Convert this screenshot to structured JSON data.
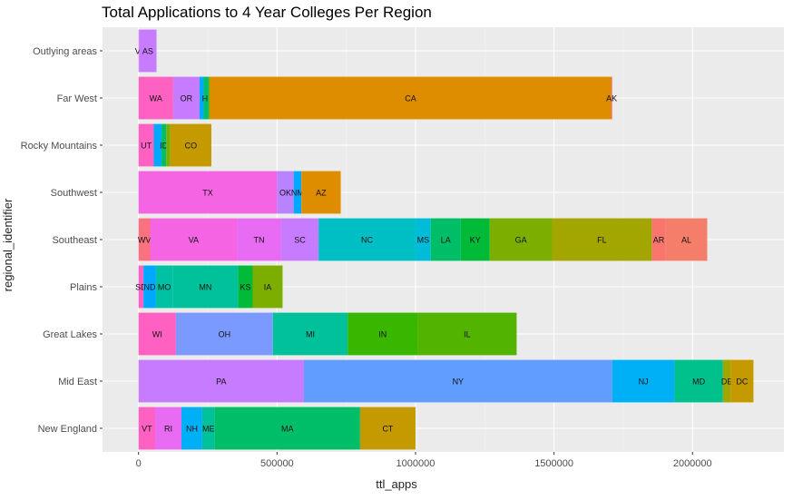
{
  "chart_data": {
    "type": "bar",
    "orientation": "horizontal",
    "stacked": true,
    "title": "Total Applications to 4 Year Colleges Per Region",
    "xlabel": "ttl_apps",
    "ylabel": "regional_identifier",
    "xlim": [
      -130000,
      2330000
    ],
    "x_ticks": [
      0,
      500000,
      1000000,
      1500000,
      2000000
    ],
    "x_tick_labels": [
      "0",
      "500000",
      "1000000",
      "1500000",
      "2000000"
    ],
    "grid": true,
    "legend": "none",
    "categories": [
      "Outlying areas",
      "Far West",
      "Rocky Mountains",
      "Southwest",
      "Southeast",
      "Plains",
      "Great Lakes",
      "Mid East",
      "New England"
    ],
    "series": [
      {
        "category": "Outlying areas",
        "segments": [
          {
            "label": "VI",
            "value": 2000,
            "color": "#e76bf3"
          },
          {
            "label": "AS",
            "value": 63000,
            "color": "#c77cff"
          }
        ]
      },
      {
        "category": "Far West",
        "segments": [
          {
            "label": "WA",
            "value": 125000,
            "color": "#ff61c3"
          },
          {
            "label": "OR",
            "value": 95000,
            "color": "#c77cff"
          },
          {
            "label": "",
            "value": 15000,
            "color": "#00a9ff"
          },
          {
            "label": "HI",
            "value": 18000,
            "color": "#00be67"
          },
          {
            "label": "",
            "value": 5000,
            "color": "#7cae00"
          },
          {
            "label": "CA",
            "value": 1448000,
            "color": "#de8c00"
          },
          {
            "label": "AK",
            "value": 4000,
            "color": "#f8766d"
          }
        ]
      },
      {
        "category": "Rocky Mountains",
        "segments": [
          {
            "label": "UT",
            "value": 55000,
            "color": "#ff61c3"
          },
          {
            "label": "",
            "value": 28000,
            "color": "#00a9ff"
          },
          {
            "label": "ID",
            "value": 17000,
            "color": "#00be67"
          },
          {
            "label": "",
            "value": 15000,
            "color": "#7cae00"
          },
          {
            "label": "CO",
            "value": 148000,
            "color": "#c49a00"
          }
        ]
      },
      {
        "category": "Southwest",
        "segments": [
          {
            "label": "TX",
            "value": 500000,
            "color": "#f564e3"
          },
          {
            "label": "OK",
            "value": 60000,
            "color": "#b983ff"
          },
          {
            "label": "NM",
            "value": 28000,
            "color": "#00a9ff"
          },
          {
            "label": "AZ",
            "value": 142000,
            "color": "#de8c00"
          }
        ]
      },
      {
        "category": "Southeast",
        "segments": [
          {
            "label": "WV",
            "value": 42000,
            "color": "#fc717f"
          },
          {
            "label": "VA",
            "value": 313000,
            "color": "#f564e3"
          },
          {
            "label": "TN",
            "value": 160000,
            "color": "#e76bf3"
          },
          {
            "label": "SC",
            "value": 135000,
            "color": "#c77cff"
          },
          {
            "label": "NC",
            "value": 350000,
            "color": "#00bfc4"
          },
          {
            "label": "MS",
            "value": 55000,
            "color": "#00bcd8"
          },
          {
            "label": "LA",
            "value": 108000,
            "color": "#00be67"
          },
          {
            "label": "KY",
            "value": 105000,
            "color": "#00ba38"
          },
          {
            "label": "GA",
            "value": 225000,
            "color": "#7cae00"
          },
          {
            "label": "FL",
            "value": 360000,
            "color": "#a3a500"
          },
          {
            "label": "AR",
            "value": 50000,
            "color": "#f8766d"
          },
          {
            "label": "AL",
            "value": 150000,
            "color": "#f47e6a"
          }
        ]
      },
      {
        "category": "Plains",
        "segments": [
          {
            "label": "SD",
            "value": 18000,
            "color": "#ff61c3"
          },
          {
            "label": "ND",
            "value": 45000,
            "color": "#00a9ff"
          },
          {
            "label": "MO",
            "value": 60000,
            "color": "#00c1a3"
          },
          {
            "label": "MN",
            "value": 237000,
            "color": "#00c19a"
          },
          {
            "label": "KS",
            "value": 52000,
            "color": "#00ba38"
          },
          {
            "label": "IA",
            "value": 108000,
            "color": "#7cae00"
          }
        ]
      },
      {
        "category": "Great Lakes",
        "segments": [
          {
            "label": "WI",
            "value": 135000,
            "color": "#ff61c3"
          },
          {
            "label": "OH",
            "value": 350000,
            "color": "#7b9aff"
          },
          {
            "label": "MI",
            "value": 270000,
            "color": "#00c19a"
          },
          {
            "label": "IN",
            "value": 253000,
            "color": "#39b600"
          },
          {
            "label": "IL",
            "value": 357000,
            "color": "#53b400"
          }
        ]
      },
      {
        "category": "Mid East",
        "segments": [
          {
            "label": "PA",
            "value": 597000,
            "color": "#c77cff"
          },
          {
            "label": "NY",
            "value": 1113000,
            "color": "#619cff"
          },
          {
            "label": "NJ",
            "value": 225000,
            "color": "#00b0f6"
          },
          {
            "label": "MD",
            "value": 175000,
            "color": "#00c08b"
          },
          {
            "label": "DE",
            "value": 28000,
            "color": "#a3a500"
          },
          {
            "label": "DC",
            "value": 82000,
            "color": "#c49a00"
          }
        ]
      },
      {
        "category": "New England",
        "segments": [
          {
            "label": "VT",
            "value": 60000,
            "color": "#ff61c3"
          },
          {
            "label": "RI",
            "value": 95000,
            "color": "#e76bf3"
          },
          {
            "label": "NH",
            "value": 75000,
            "color": "#00b0f6"
          },
          {
            "label": "ME",
            "value": 45000,
            "color": "#00c19a"
          },
          {
            "label": "MA",
            "value": 525000,
            "color": "#00be67"
          },
          {
            "label": "CT",
            "value": 200000,
            "color": "#c49a00"
          }
        ]
      }
    ]
  }
}
